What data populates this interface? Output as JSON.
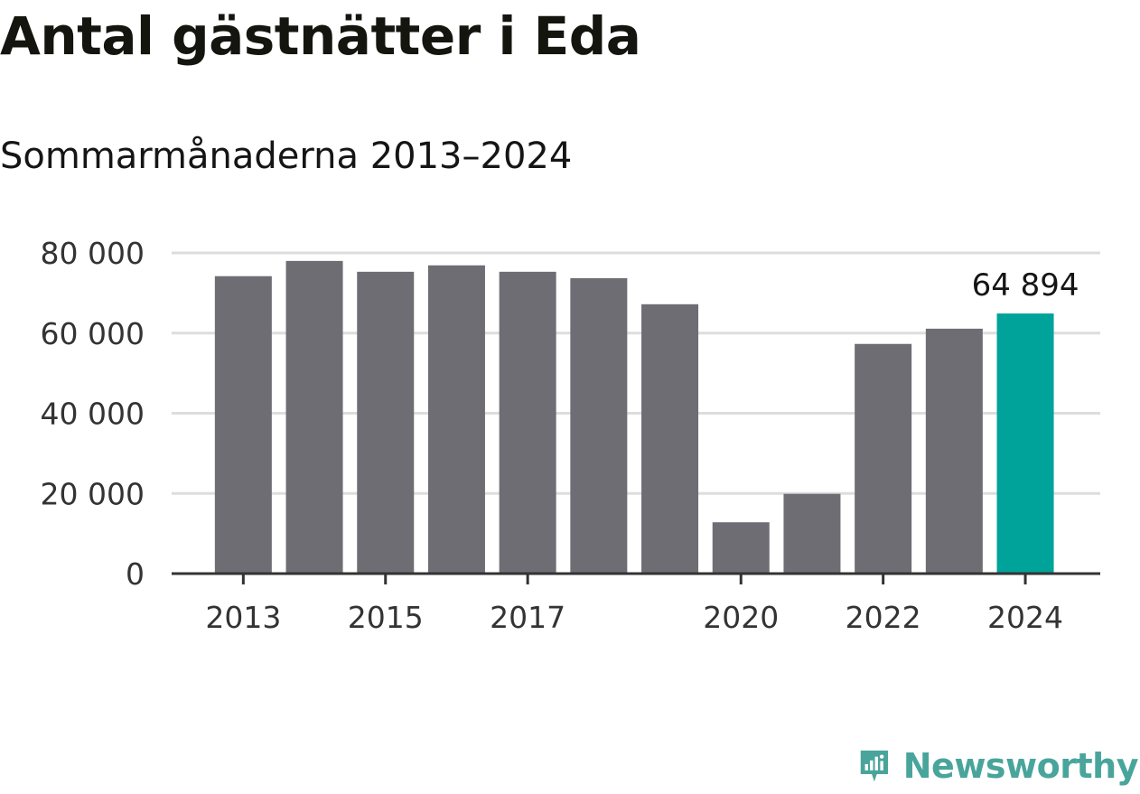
{
  "chart_data": {
    "type": "bar",
    "title": "Antal gästnätter i Eda",
    "subtitle": "Sommarmånaderna 2013–2024",
    "categories": [
      "2013",
      "2014",
      "2015",
      "2016",
      "2017",
      "2018",
      "2019",
      "2020",
      "2021",
      "2022",
      "2023",
      "2024"
    ],
    "values": [
      74200,
      78000,
      75300,
      76900,
      75300,
      73700,
      67200,
      12800,
      19900,
      57300,
      61100,
      64894
    ],
    "x_tick_labels": [
      "2013",
      "2015",
      "2017",
      "2020",
      "2022",
      "2024"
    ],
    "y_ticks": [
      0,
      20000,
      40000,
      60000,
      80000
    ],
    "y_tick_labels": [
      "0",
      "20 000",
      "40 000",
      "60 000",
      "80 000"
    ],
    "ylim": [
      0,
      80000
    ],
    "xlabel": "",
    "ylabel": "",
    "grid": true,
    "highlight": {
      "category": "2024",
      "label": "64 894"
    },
    "colors": {
      "bar": "#6e6d73",
      "highlight": "#00a39a",
      "grid": "#dddddd",
      "axis": "#333333"
    }
  },
  "brand": {
    "name": "Newsworthy",
    "icon": "newsworthy-logo-icon",
    "color": "#49a59b"
  }
}
